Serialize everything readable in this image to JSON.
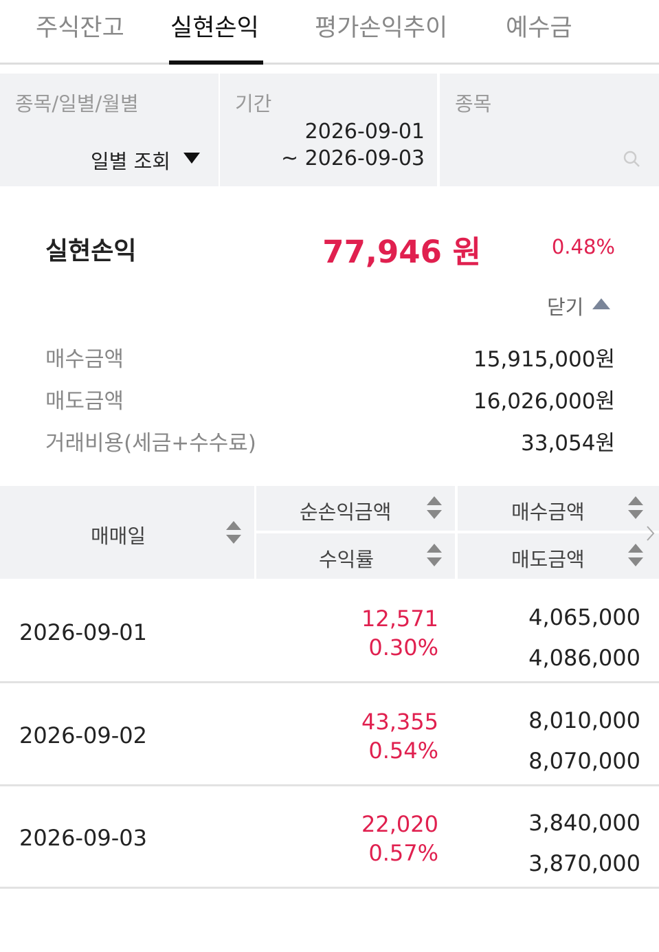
{
  "tabs": [
    "주식잔고",
    "실현손익",
    "평가손익추이",
    "예수금"
  ],
  "filters": {
    "type": {
      "label": "종목/일별/월별",
      "value": "일별 조회"
    },
    "period": {
      "label": "기간",
      "start": "2026-09-01",
      "end": "~ 2026-09-03"
    },
    "stock": {
      "label": "종목"
    }
  },
  "summary": {
    "label": "실현손익",
    "amount": "77,946 원",
    "rate": "0.48%",
    "toggle": "닫기",
    "details": [
      {
        "label": "매수금액",
        "value": "15,915,000원"
      },
      {
        "label": "매도금액",
        "value": "16,026,000원"
      },
      {
        "label": "거래비용(세금+수수료)",
        "value": "33,054원"
      }
    ]
  },
  "table": {
    "headers": {
      "date": "매매일",
      "profit": "순손익금액",
      "rate": "수익률",
      "buy": "매수금액",
      "sell": "매도금액"
    },
    "rows": [
      [
        "2026-09-01",
        "12,571",
        "0.30%",
        "4,065,000",
        "4,086,000"
      ],
      [
        "2026-09-02",
        "43,355",
        "0.54%",
        "8,010,000",
        "8,070,000"
      ],
      [
        "2026-09-03",
        "22,020",
        "0.57%",
        "3,840,000",
        "3,870,000"
      ]
    ]
  }
}
